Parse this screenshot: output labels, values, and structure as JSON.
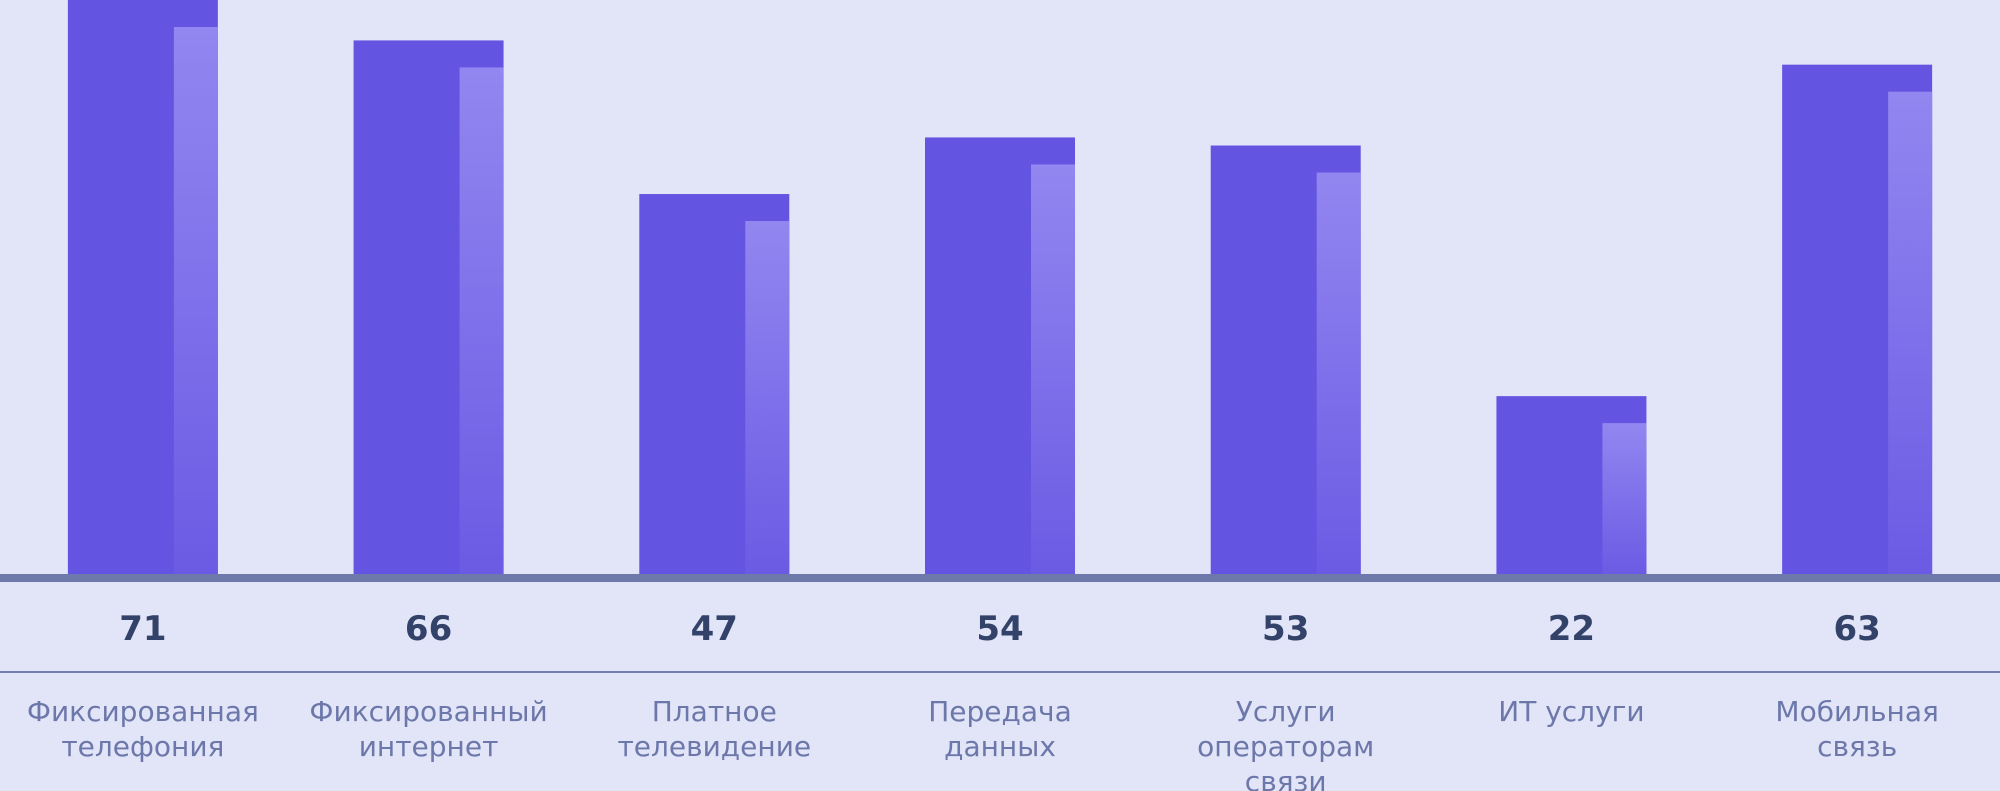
{
  "chart_data": {
    "type": "bar",
    "categories": [
      [
        "Фиксированная",
        "телефония"
      ],
      [
        "Фиксированный",
        "интернет"
      ],
      [
        "Платное",
        "телевидение"
      ],
      [
        "Передача",
        "данных"
      ],
      [
        "Услуги",
        "операторам",
        "связи"
      ],
      [
        "ИТ услуги"
      ],
      [
        "Мобильная",
        "связь"
      ]
    ],
    "values": [
      71,
      66,
      47,
      54,
      53,
      22,
      63
    ],
    "ylim": [
      0,
      71
    ],
    "grid": false,
    "legend": "none",
    "colors": {
      "background": "#e2e4f8",
      "bar": "#6454e2",
      "bar_highlight_top": "#9286f0",
      "bar_highlight_bottom": "#6b5be4",
      "baseline": "#6f78ab",
      "divider": "#7480b3",
      "value_text": "#334268",
      "category_text": "#6d78aa"
    }
  }
}
